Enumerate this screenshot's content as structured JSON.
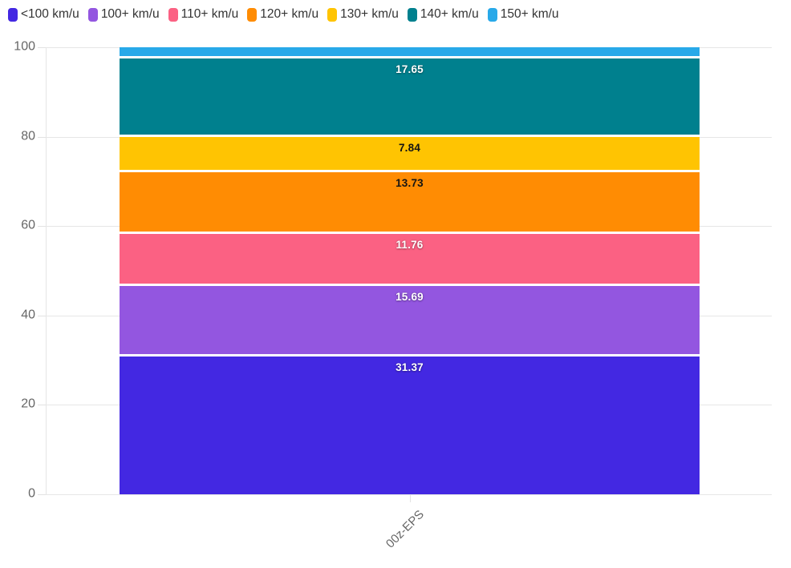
{
  "chart_data": {
    "type": "bar",
    "stacked": true,
    "orientation": "vertical",
    "title": "",
    "xlabel": "",
    "ylabel": "",
    "categories": [
      "00z-EPS"
    ],
    "ylim": [
      0,
      100
    ],
    "yticks": [
      0,
      20,
      40,
      60,
      80,
      100
    ],
    "grid": true,
    "legend_position": "top-left",
    "background_color": "#ffffff",
    "gridline_color": "#e6e6e6",
    "axis_label_color": "#666666",
    "legend_text_color": "#333333",
    "series": [
      {
        "name": "<100 km/u",
        "color": "#4328e2",
        "label_color": "#ffffff",
        "values": [
          31.37
        ]
      },
      {
        "name": "100+ km/u",
        "color": "#9356e0",
        "label_color": "#ffffff",
        "values": [
          15.69
        ]
      },
      {
        "name": "110+ km/u",
        "color": "#fb6183",
        "label_color": "#ffffff",
        "values": [
          11.76
        ]
      },
      {
        "name": "120+ km/u",
        "color": "#ff8c03",
        "label_color": "#141414",
        "values": [
          13.73
        ]
      },
      {
        "name": "130+ km/u",
        "color": "#ffc402",
        "label_color": "#141414",
        "values": [
          7.84
        ]
      },
      {
        "name": "140+ km/u",
        "color": "#00808e",
        "label_color": "#ffffff",
        "values": [
          17.65
        ]
      },
      {
        "name": "150+ km/u",
        "color": "#28a9e9",
        "label_color": "#ffffff",
        "values": [
          1.96
        ],
        "label_hidden": true
      }
    ]
  }
}
